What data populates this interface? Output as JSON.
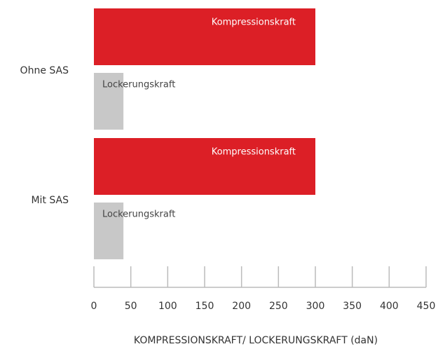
{
  "chart_data": {
    "type": "hbar",
    "categories": [
      "Ohne SAS",
      "Mit SAS"
    ],
    "series": [
      {
        "name": "Kompressionskraft",
        "color": "#dc1f26",
        "values": [
          300,
          300
        ]
      },
      {
        "name": "Lockerungskraft",
        "color": "#c8c8c8",
        "values": [
          40,
          40
        ]
      }
    ],
    "xlabel": "KOMPRESSIONSKRAFT/ LOCKERUNGSKRAFT (daN)",
    "xlim": [
      0,
      450
    ],
    "xticks": [
      0,
      50,
      100,
      150,
      200,
      250,
      300,
      350,
      400,
      450
    ]
  }
}
